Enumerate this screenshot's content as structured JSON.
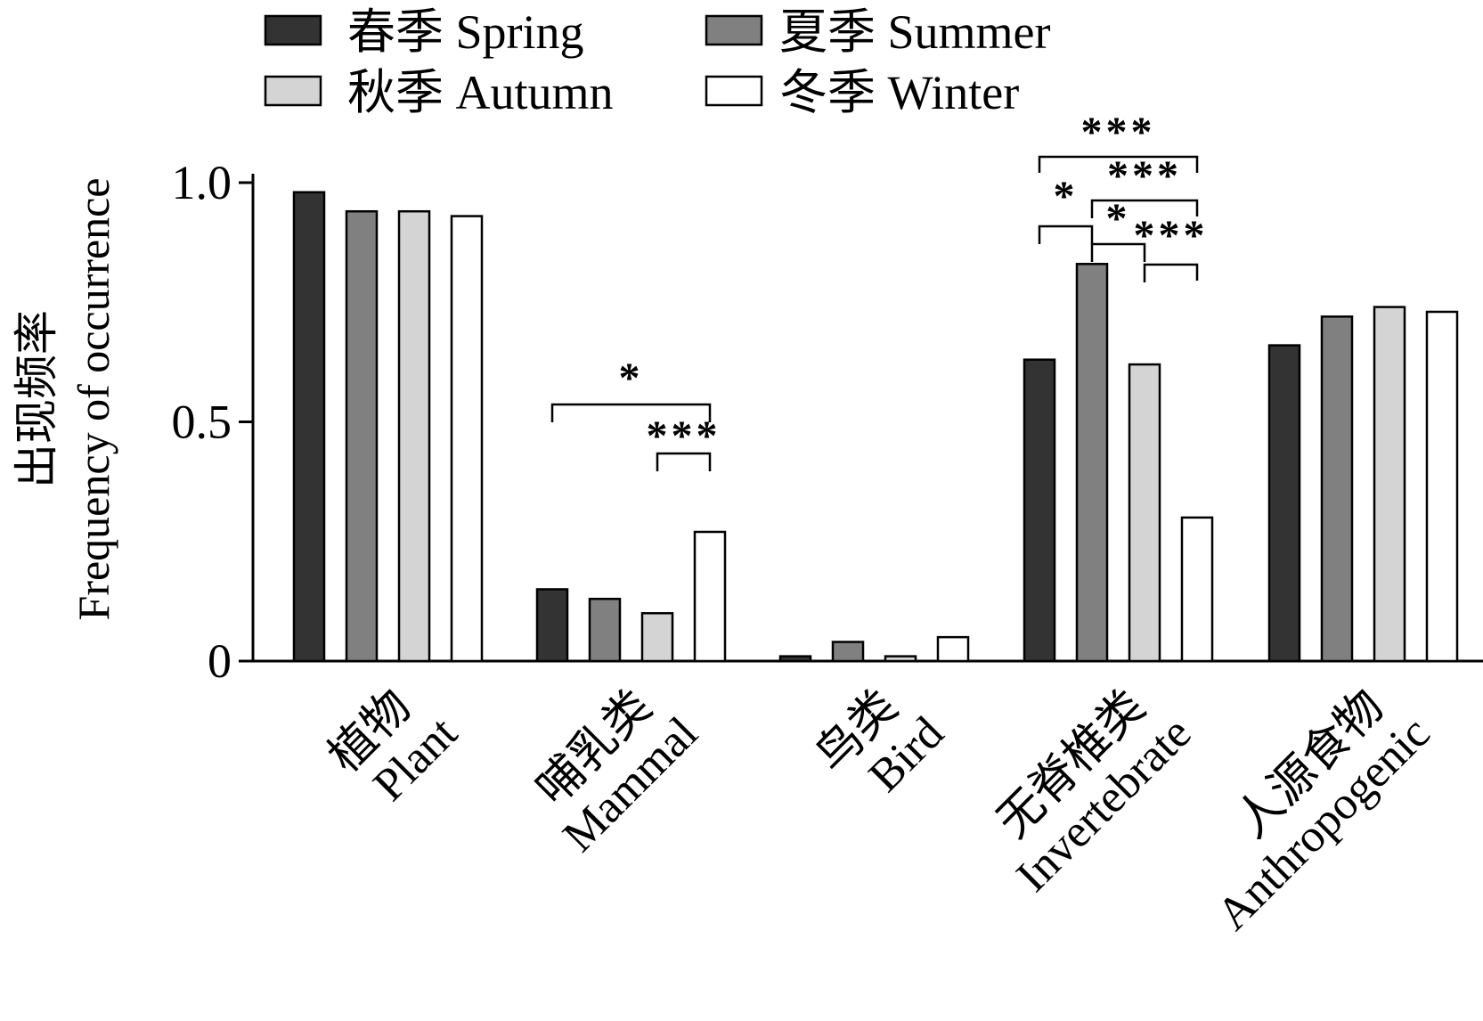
{
  "chart_data": {
    "type": "bar",
    "ylabel_cn": "出现频率",
    "ylabel": "Frequency of occurrence",
    "ylim": [
      0,
      1.0
    ],
    "yticks": [
      {
        "value": 0,
        "label": "0"
      },
      {
        "value": 0.5,
        "label": "0.5"
      },
      {
        "value": 1.0,
        "label": "1.0"
      }
    ],
    "legend_placement": "top-left",
    "categories": [
      {
        "cn": "植物",
        "en": "Plant"
      },
      {
        "cn": "哺乳类",
        "en": "Mammal"
      },
      {
        "cn": "鸟类",
        "en": "Bird"
      },
      {
        "cn": "无脊椎类",
        "en": "Invertebrate"
      },
      {
        "cn": "人源食物",
        "en": "Anthropogenic"
      }
    ],
    "series": [
      {
        "name": "春季 Spring",
        "color": "#333333",
        "values": [
          0.98,
          0.15,
          0.01,
          0.63,
          0.66
        ]
      },
      {
        "name": "夏季 Summer",
        "color": "#808080",
        "values": [
          0.94,
          0.13,
          0.04,
          0.83,
          0.72
        ]
      },
      {
        "name": "秋季 Autumn",
        "color": "#d4d4d4",
        "values": [
          0.94,
          0.1,
          0.01,
          0.62,
          0.74
        ]
      },
      {
        "name": "冬季 Winter",
        "color": "#ffffff",
        "values": [
          0.93,
          0.27,
          0.05,
          0.3,
          0.73
        ]
      }
    ],
    "significance": [
      {
        "category": 1,
        "from": 0,
        "to": 3,
        "label": "*"
      },
      {
        "category": 1,
        "from": 2,
        "to": 3,
        "label": "***"
      },
      {
        "category": 3,
        "from": 0,
        "to": 1,
        "label": "*"
      },
      {
        "category": 3,
        "from": 0,
        "to": 3,
        "label": "***"
      },
      {
        "category": 3,
        "from": 1,
        "to": 2,
        "label": "*"
      },
      {
        "category": 3,
        "from": 1,
        "to": 3,
        "label": "***"
      },
      {
        "category": 3,
        "from": 2,
        "to": 3,
        "label": "***"
      }
    ]
  }
}
